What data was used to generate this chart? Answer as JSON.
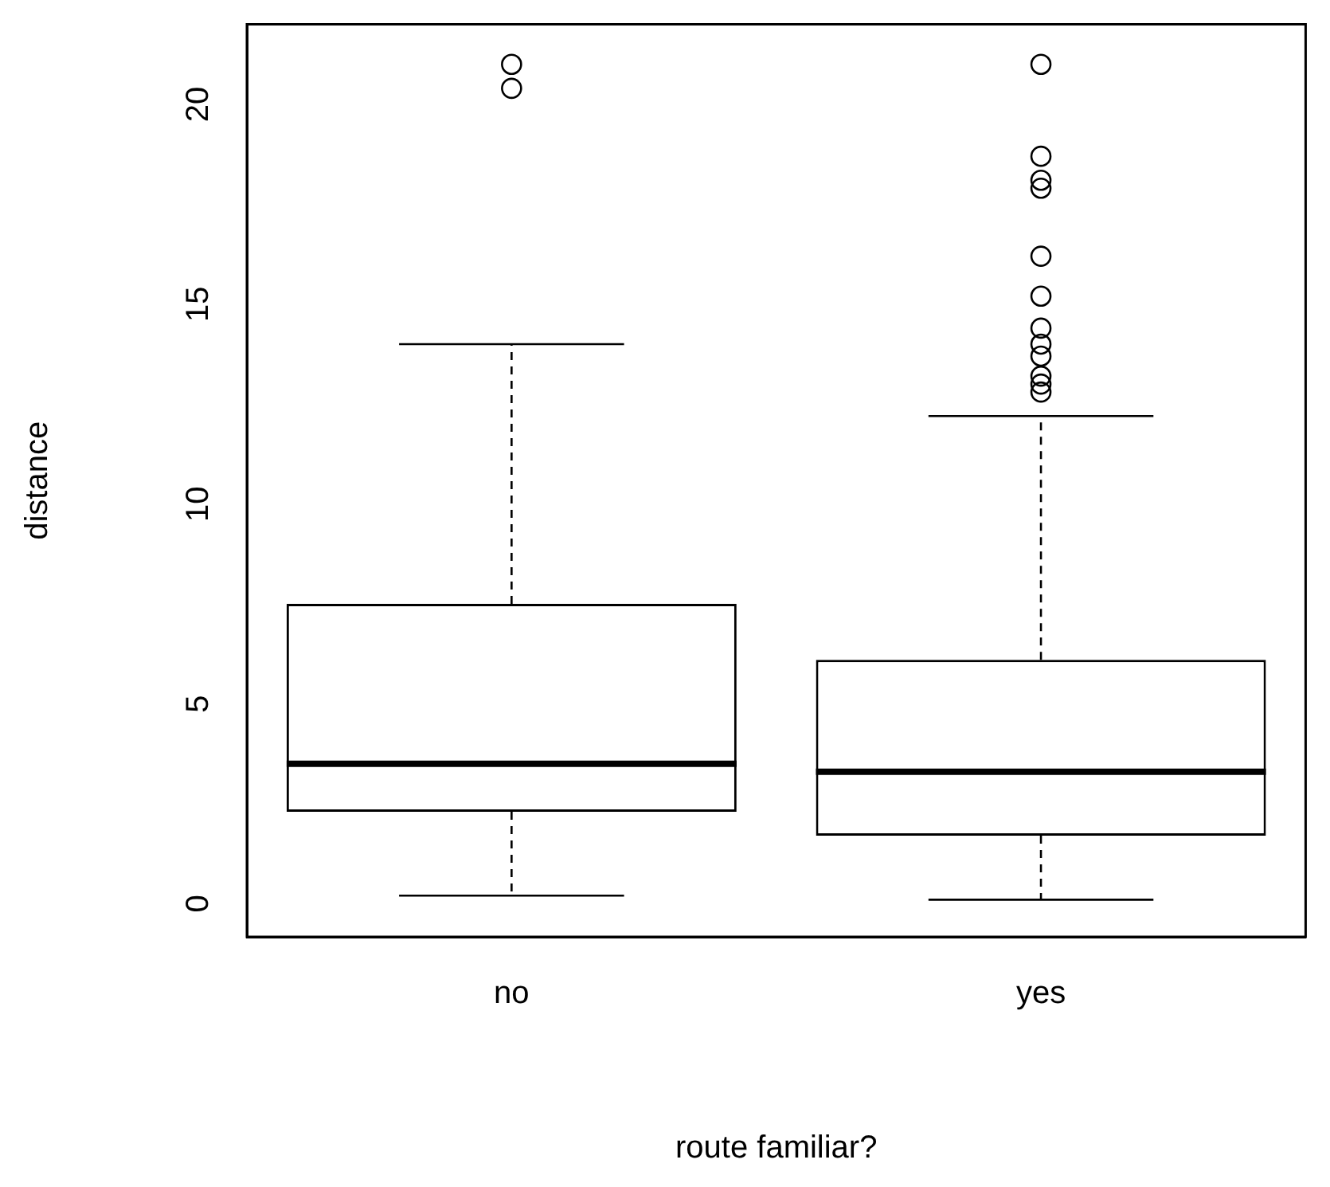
{
  "chart_data": {
    "type": "box",
    "xlabel": "route familiar?",
    "ylabel": "distance",
    "categories": [
      "no",
      "yes"
    ],
    "boxes": [
      {
        "low": 0.2,
        "q1": 2.3,
        "median": 3.5,
        "q3": 7.5,
        "high": 14.0,
        "outliers": [
          21.0,
          20.4
        ]
      },
      {
        "low": 0.1,
        "q1": 1.7,
        "median": 3.3,
        "q3": 6.1,
        "high": 12.2,
        "outliers": [
          21.0,
          18.7,
          18.1,
          17.9,
          16.2,
          15.2,
          14.4,
          14.0,
          13.7,
          13.2,
          13.0,
          12.8
        ]
      }
    ],
    "ylim": [
      -0.83,
      22.0
    ],
    "yticks": [
      0,
      5,
      10,
      15,
      20
    ]
  }
}
